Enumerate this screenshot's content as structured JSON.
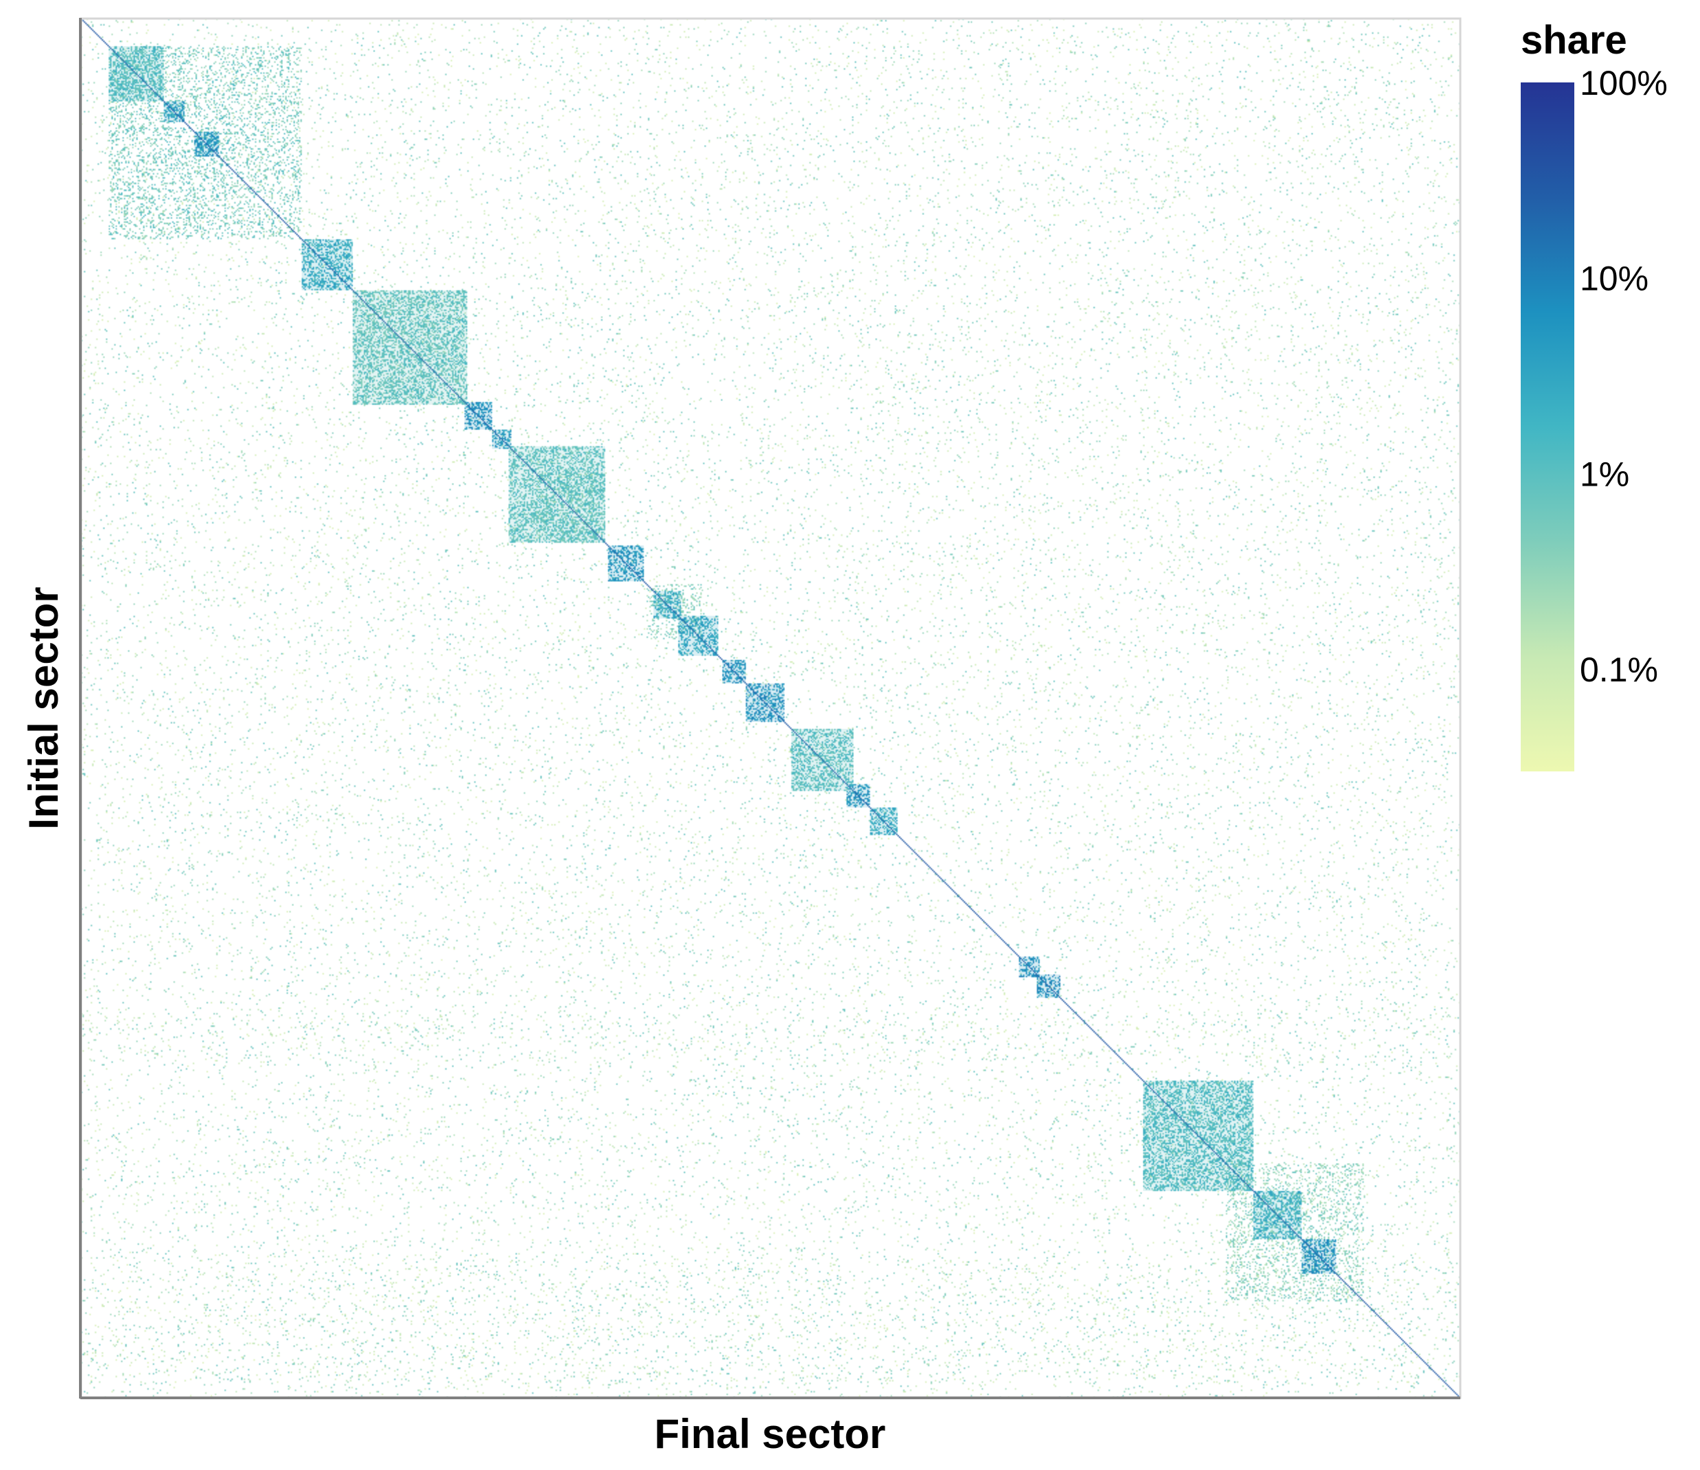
{
  "chart_data": {
    "type": "heatmap",
    "title": "",
    "xlabel": "Final sector",
    "ylabel": "Initial sector",
    "x_tick_labels": [],
    "y_tick_labels": [],
    "color_scale": {
      "name": "share",
      "scale": "log",
      "palette": [
        "#edf8b1",
        "#c7e9b4",
        "#7fcdbb",
        "#41b6c4",
        "#1d91c0",
        "#225ea8",
        "#253494"
      ],
      "domain": [
        0.0003,
        1.0
      ],
      "ticks": [
        {
          "value": 1.0,
          "label": "100%"
        },
        {
          "value": 0.1,
          "label": "10%"
        },
        {
          "value": 0.01,
          "label": "1%"
        },
        {
          "value": 0.001,
          "label": "0.1%"
        }
      ]
    },
    "legend_position": "top-right",
    "grid": false,
    "structure": {
      "n_sectors": 1000,
      "diagonal_share": 0.3,
      "diagonal_blocks": [
        {
          "start": 20,
          "end": 60,
          "share": 0.012
        },
        {
          "start": 60,
          "end": 75,
          "share": 0.04
        },
        {
          "start": 82,
          "end": 100,
          "share": 0.05
        },
        {
          "start": 160,
          "end": 197,
          "share": 0.025
        },
        {
          "start": 197,
          "end": 280,
          "share": 0.008
        },
        {
          "start": 278,
          "end": 298,
          "share": 0.06
        },
        {
          "start": 298,
          "end": 312,
          "share": 0.04
        },
        {
          "start": 310,
          "end": 380,
          "share": 0.009
        },
        {
          "start": 382,
          "end": 408,
          "share": 0.05
        },
        {
          "start": 415,
          "end": 435,
          "share": 0.025
        },
        {
          "start": 433,
          "end": 462,
          "share": 0.03
        },
        {
          "start": 465,
          "end": 482,
          "share": 0.05
        },
        {
          "start": 482,
          "end": 510,
          "share": 0.06
        },
        {
          "start": 515,
          "end": 560,
          "share": 0.01
        },
        {
          "start": 555,
          "end": 572,
          "share": 0.05
        },
        {
          "start": 572,
          "end": 592,
          "share": 0.025
        },
        {
          "start": 680,
          "end": 695,
          "share": 0.06
        },
        {
          "start": 693,
          "end": 710,
          "share": 0.07
        },
        {
          "start": 770,
          "end": 850,
          "share": 0.012
        },
        {
          "start": 850,
          "end": 885,
          "share": 0.02
        },
        {
          "start": 885,
          "end": 910,
          "share": 0.06
        }
      ],
      "off_diagonal_clusters": [
        {
          "rows": [
            20,
            160
          ],
          "cols": [
            20,
            160
          ],
          "share": 0.006
        },
        {
          "rows": [
            330,
            380
          ],
          "cols": [
            330,
            380
          ],
          "share": 0.004
        },
        {
          "rows": [
            410,
            450
          ],
          "cols": [
            410,
            450
          ],
          "share": 0.004
        },
        {
          "rows": [
            830,
            930
          ],
          "cols": [
            830,
            930
          ],
          "share": 0.004
        }
      ],
      "background_density": 0.03
    }
  }
}
